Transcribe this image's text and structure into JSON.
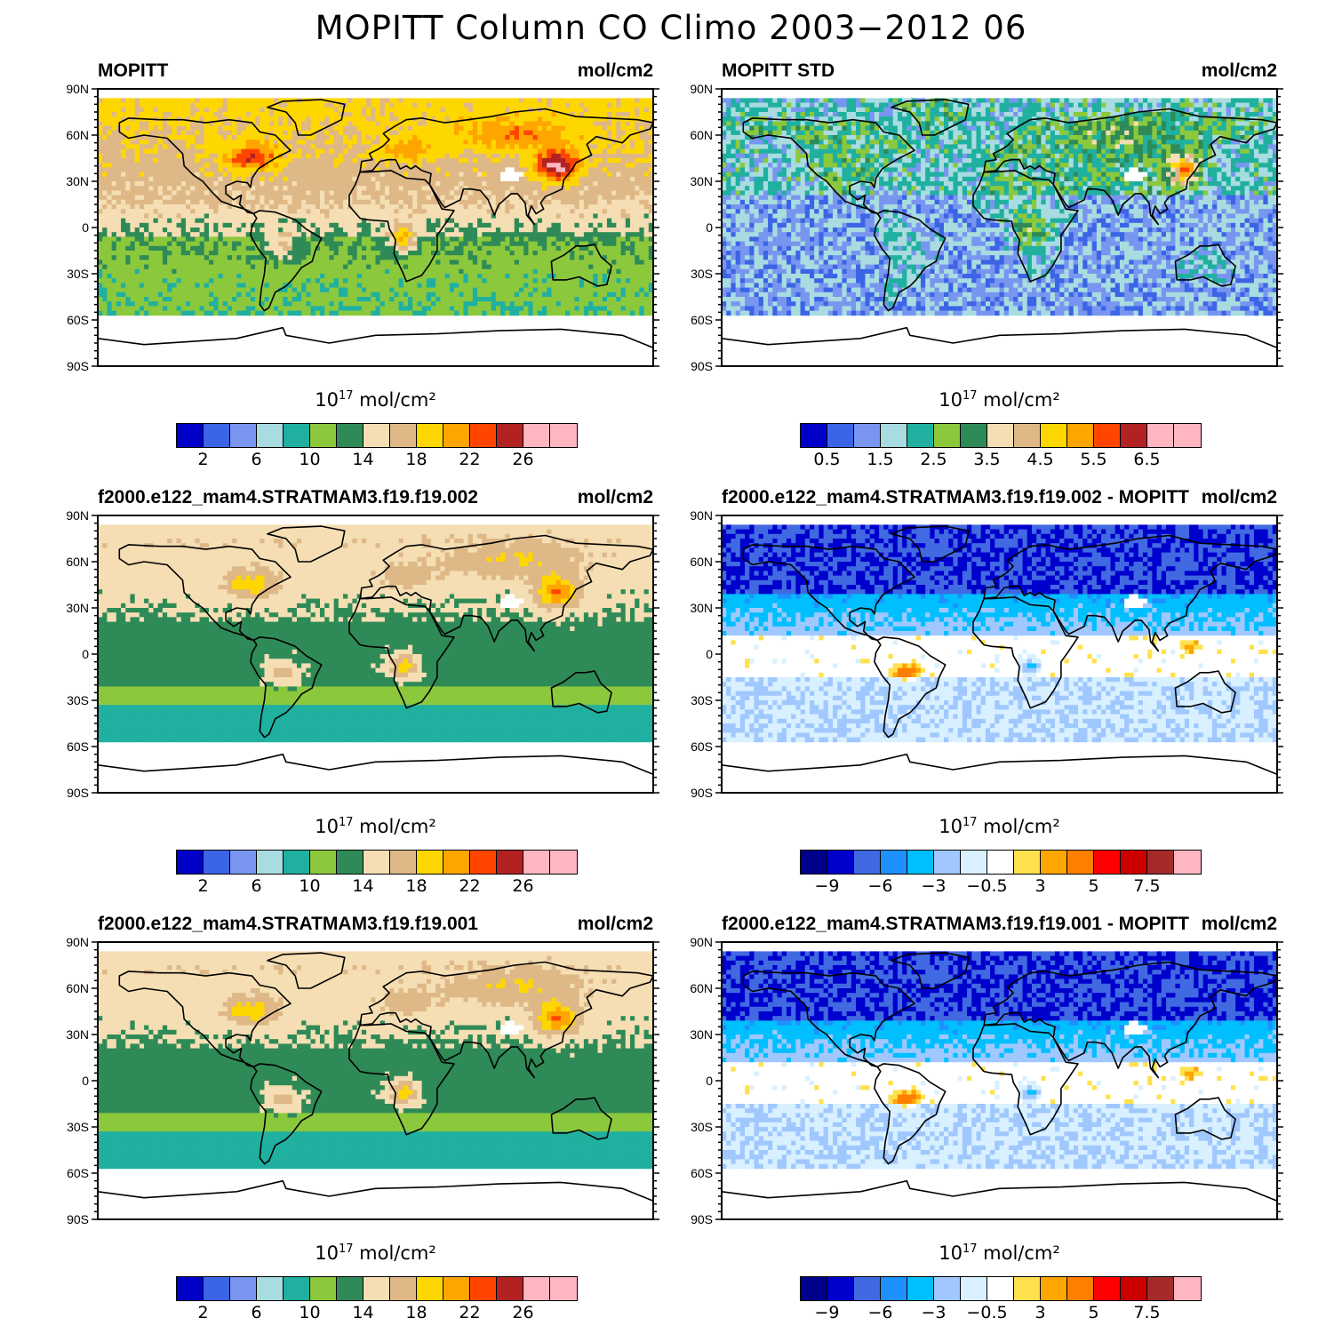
{
  "title": "MOPITT Column CO Climo 2003−2012 06",
  "lat_labels": [
    "90N",
    "60N",
    "30N",
    "0",
    "30S",
    "60S",
    "90S"
  ],
  "palettes": {
    "abs": [
      "#0000c8",
      "#3c64e6",
      "#7896f0",
      "#a8dce0",
      "#20b0a0",
      "#8cc83c",
      "#2e8b57",
      "#f5deb3",
      "#deb887",
      "#ffd700",
      "#ffa500",
      "#ff4500",
      "#b22222",
      "#ffb6c1",
      "#ffb6c1"
    ],
    "diff": [
      "#00008b",
      "#0000cd",
      "#4169e1",
      "#1e90ff",
      "#00bfff",
      "#a0c8ff",
      "#d8f0ff",
      "#ffffff",
      "#ffe14d",
      "#ffa500",
      "#ff7f00",
      "#ff0000",
      "#cd0000",
      "#a52a2a",
      "#ffb6c1"
    ]
  },
  "panels": [
    {
      "id": "mopitt",
      "title": "MOPITT",
      "units": "mol/cm2",
      "kind": "mopitt",
      "colorbar_title_base": "10",
      "colorbar_title_exp": "17",
      "colorbar_title_rest": " mol/cm²",
      "colorbar_palette": "abs",
      "colorbar_labels": [
        {
          "text": "2",
          "at": 1
        },
        {
          "text": "6",
          "at": 3
        },
        {
          "text": "10",
          "at": 5
        },
        {
          "text": "14",
          "at": 7
        },
        {
          "text": "18",
          "at": 9
        },
        {
          "text": "22",
          "at": 11
        },
        {
          "text": "26",
          "at": 13
        }
      ]
    },
    {
      "id": "mopitt-std",
      "title": "MOPITT STD",
      "units": "mol/cm2",
      "kind": "std",
      "colorbar_title_base": "10",
      "colorbar_title_exp": "17",
      "colorbar_title_rest": " mol/cm²",
      "colorbar_palette": "abs",
      "colorbar_labels": [
        {
          "text": "0.5",
          "at": 1
        },
        {
          "text": "1.5",
          "at": 3
        },
        {
          "text": "2.5",
          "at": 5
        },
        {
          "text": "3.5",
          "at": 7
        },
        {
          "text": "4.5",
          "at": 9
        },
        {
          "text": "5.5",
          "at": 11
        },
        {
          "text": "6.5",
          "at": 13
        }
      ]
    },
    {
      "id": "model-002",
      "title": "f2000.e122_mam4.STRATMAM3.f19.f19.002",
      "units": "mol/cm2",
      "kind": "model",
      "colorbar_title_base": "10",
      "colorbar_title_exp": "17",
      "colorbar_title_rest": " mol/cm²",
      "colorbar_palette": "abs",
      "colorbar_labels": [
        {
          "text": "2",
          "at": 1
        },
        {
          "text": "6",
          "at": 3
        },
        {
          "text": "10",
          "at": 5
        },
        {
          "text": "14",
          "at": 7
        },
        {
          "text": "18",
          "at": 9
        },
        {
          "text": "22",
          "at": 11
        },
        {
          "text": "26",
          "at": 13
        }
      ]
    },
    {
      "id": "diff-002",
      "title": "f2000.e122_mam4.STRATMAM3.f19.f19.002 - MOPITT",
      "units": "mol/cm2",
      "kind": "diff",
      "colorbar_title_base": "10",
      "colorbar_title_exp": "17",
      "colorbar_title_rest": " mol/cm²",
      "colorbar_palette": "diff",
      "colorbar_labels": [
        {
          "text": "−9",
          "at": 1
        },
        {
          "text": "−6",
          "at": 3
        },
        {
          "text": "−3",
          "at": 5
        },
        {
          "text": "−0.5",
          "at": 7
        },
        {
          "text": "3",
          "at": 9
        },
        {
          "text": "5",
          "at": 11
        },
        {
          "text": "7.5",
          "at": 13
        }
      ]
    },
    {
      "id": "model-001",
      "title": "f2000.e122_mam4.STRATMAM3.f19.f19.001",
      "units": "mol/cm2",
      "kind": "model",
      "colorbar_title_base": "10",
      "colorbar_title_exp": "17",
      "colorbar_title_rest": " mol/cm²",
      "colorbar_palette": "abs",
      "colorbar_labels": [
        {
          "text": "2",
          "at": 1
        },
        {
          "text": "6",
          "at": 3
        },
        {
          "text": "10",
          "at": 5
        },
        {
          "text": "14",
          "at": 7
        },
        {
          "text": "18",
          "at": 9
        },
        {
          "text": "22",
          "at": 11
        },
        {
          "text": "26",
          "at": 13
        }
      ]
    },
    {
      "id": "diff-001",
      "title": "f2000.e122_mam4.STRATMAM3.f19.f19.001 - MOPITT",
      "units": "mol/cm2",
      "kind": "diff",
      "colorbar_title_base": "10",
      "colorbar_title_exp": "17",
      "colorbar_title_rest": " mol/cm²",
      "colorbar_palette": "diff",
      "colorbar_labels": [
        {
          "text": "−9",
          "at": 1
        },
        {
          "text": "−6",
          "at": 3
        },
        {
          "text": "−3",
          "at": 5
        },
        {
          "text": "−0.5",
          "at": 7
        },
        {
          "text": "3",
          "at": 9
        },
        {
          "text": "5",
          "at": 11
        },
        {
          "text": "7.5",
          "at": 13
        }
      ]
    }
  ]
}
